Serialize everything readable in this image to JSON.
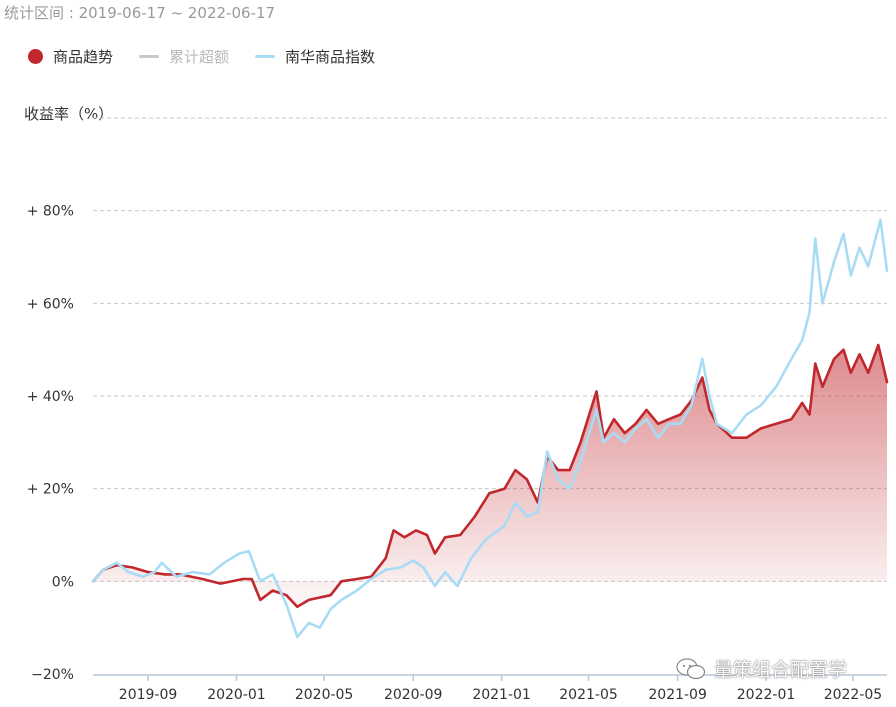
{
  "header": {
    "stat_range": "统计区间 : 2019-06-17 ~ 2022-06-17"
  },
  "legend": [
    {
      "label": "商品趋势",
      "color": "#c0282d",
      "shape": "dot"
    },
    {
      "label": "累计超额",
      "color": "#c8c8c8",
      "shape": "line",
      "muted": true
    },
    {
      "label": "南华商品指数",
      "color": "#a8dcf5",
      "shape": "line"
    }
  ],
  "watermark": {
    "text": "量策组合配置学",
    "icon": "wechat-icon"
  },
  "chart_data": {
    "type": "line",
    "ylabel": "收益率（%）",
    "ylim": [
      -20,
      100
    ],
    "yticks": [
      {
        "value": 80,
        "label": "+ 80%"
      },
      {
        "value": 60,
        "label": "+ 60%"
      },
      {
        "value": 40,
        "label": "+ 40%"
      },
      {
        "value": 20,
        "label": "+ 20%"
      },
      {
        "value": 0,
        "label": "0%"
      },
      {
        "value": -20,
        "label": "−20%"
      }
    ],
    "xlim": [
      "2019-06-17",
      "2022-06-17"
    ],
    "xticks": [
      "2019-09",
      "2020-01",
      "2020-05",
      "2020-09",
      "2021-01",
      "2021-05",
      "2021-09",
      "2022-01",
      "2022-05"
    ],
    "grid": true,
    "legend_position": "top-left",
    "series": [
      {
        "name": "商品趋势",
        "color": "#c0282d",
        "area": true,
        "points": [
          [
            "2019-06-17",
            0
          ],
          [
            "2019-07-01",
            2.5
          ],
          [
            "2019-07-20",
            3.5
          ],
          [
            "2019-08-10",
            3.0
          ],
          [
            "2019-09-01",
            2.0
          ],
          [
            "2019-09-25",
            1.5
          ],
          [
            "2019-10-15",
            1.5
          ],
          [
            "2019-11-15",
            0.5
          ],
          [
            "2019-12-10",
            -0.5
          ],
          [
            "2020-01-10",
            0.5
          ],
          [
            "2020-01-22",
            0.5
          ],
          [
            "2020-02-03",
            -4.0
          ],
          [
            "2020-02-20",
            -2.0
          ],
          [
            "2020-03-10",
            -3.0
          ],
          [
            "2020-03-25",
            -5.5
          ],
          [
            "2020-04-10",
            -4.0
          ],
          [
            "2020-04-25",
            -3.5
          ],
          [
            "2020-05-10",
            -3.0
          ],
          [
            "2020-05-25",
            0.0
          ],
          [
            "2020-06-15",
            0.5
          ],
          [
            "2020-07-05",
            1.0
          ],
          [
            "2020-07-25",
            5.0
          ],
          [
            "2020-08-05",
            11.0
          ],
          [
            "2020-08-20",
            9.5
          ],
          [
            "2020-09-05",
            11.0
          ],
          [
            "2020-09-20",
            10.0
          ],
          [
            "2020-10-01",
            6.0
          ],
          [
            "2020-10-15",
            9.5
          ],
          [
            "2020-11-05",
            10.0
          ],
          [
            "2020-11-25",
            14.0
          ],
          [
            "2020-12-15",
            19.0
          ],
          [
            "2021-01-05",
            20.0
          ],
          [
            "2021-01-20",
            24.0
          ],
          [
            "2021-02-05",
            22.0
          ],
          [
            "2021-02-20",
            17.0
          ],
          [
            "2021-03-05",
            27.0
          ],
          [
            "2021-03-20",
            24.0
          ],
          [
            "2021-04-05",
            24.0
          ],
          [
            "2021-04-20",
            30.0
          ],
          [
            "2021-05-12",
            41.0
          ],
          [
            "2021-05-22",
            31.0
          ],
          [
            "2021-06-05",
            35.0
          ],
          [
            "2021-06-20",
            32.0
          ],
          [
            "2021-07-05",
            34.0
          ],
          [
            "2021-07-20",
            37.0
          ],
          [
            "2021-08-05",
            34.0
          ],
          [
            "2021-08-20",
            35.0
          ],
          [
            "2021-09-05",
            36.0
          ],
          [
            "2021-09-20",
            39.0
          ],
          [
            "2021-10-05",
            44.0
          ],
          [
            "2021-10-15",
            37.0
          ],
          [
            "2021-10-25",
            34.0
          ],
          [
            "2021-11-15",
            31.0
          ],
          [
            "2021-12-05",
            31.0
          ],
          [
            "2021-12-25",
            33.0
          ],
          [
            "2022-01-15",
            34.0
          ],
          [
            "2022-02-05",
            35.0
          ],
          [
            "2022-02-20",
            38.5
          ],
          [
            "2022-03-02",
            36.0
          ],
          [
            "2022-03-10",
            47.0
          ],
          [
            "2022-03-20",
            42.0
          ],
          [
            "2022-04-05",
            48.0
          ],
          [
            "2022-04-18",
            50.0
          ],
          [
            "2022-04-28",
            45.0
          ],
          [
            "2022-05-10",
            49.0
          ],
          [
            "2022-05-22",
            45.0
          ],
          [
            "2022-06-05",
            51.0
          ],
          [
            "2022-06-17",
            43.0
          ]
        ]
      },
      {
        "name": "南华商品指数",
        "color": "#a8dcf5",
        "area": false,
        "points": [
          [
            "2019-06-17",
            0
          ],
          [
            "2019-07-01",
            2.5
          ],
          [
            "2019-07-20",
            4.0
          ],
          [
            "2019-08-05",
            2.0
          ],
          [
            "2019-08-25",
            1.0
          ],
          [
            "2019-09-10",
            2.0
          ],
          [
            "2019-09-20",
            4.0
          ],
          [
            "2019-10-10",
            1.0
          ],
          [
            "2019-11-01",
            2.0
          ],
          [
            "2019-11-25",
            1.5
          ],
          [
            "2019-12-15",
            4.0
          ],
          [
            "2020-01-05",
            6.0
          ],
          [
            "2020-01-18",
            6.5
          ],
          [
            "2020-02-03",
            0.0
          ],
          [
            "2020-02-20",
            1.5
          ],
          [
            "2020-03-10",
            -5.0
          ],
          [
            "2020-03-25",
            -12.0
          ],
          [
            "2020-04-10",
            -9.0
          ],
          [
            "2020-04-25",
            -10.0
          ],
          [
            "2020-05-10",
            -6.0
          ],
          [
            "2020-05-25",
            -4.0
          ],
          [
            "2020-06-15",
            -2.0
          ],
          [
            "2020-07-05",
            0.5
          ],
          [
            "2020-07-25",
            2.5
          ],
          [
            "2020-08-15",
            3.0
          ],
          [
            "2020-09-01",
            4.5
          ],
          [
            "2020-09-15",
            3.0
          ],
          [
            "2020-10-01",
            -1.0
          ],
          [
            "2020-10-15",
            2.0
          ],
          [
            "2020-11-01",
            -1.0
          ],
          [
            "2020-11-20",
            5.0
          ],
          [
            "2020-12-10",
            9.0
          ],
          [
            "2021-01-05",
            12.0
          ],
          [
            "2021-01-20",
            17.0
          ],
          [
            "2021-02-05",
            14.0
          ],
          [
            "2021-02-20",
            15.0
          ],
          [
            "2021-03-05",
            28.0
          ],
          [
            "2021-03-20",
            22.0
          ],
          [
            "2021-04-05",
            20.0
          ],
          [
            "2021-04-20",
            26.0
          ],
          [
            "2021-05-12",
            37.0
          ],
          [
            "2021-05-22",
            30.0
          ],
          [
            "2021-06-05",
            32.0
          ],
          [
            "2021-06-20",
            30.0
          ],
          [
            "2021-07-05",
            33.0
          ],
          [
            "2021-07-20",
            35.0
          ],
          [
            "2021-08-05",
            31.0
          ],
          [
            "2021-08-20",
            34.0
          ],
          [
            "2021-09-05",
            34.0
          ],
          [
            "2021-09-20",
            38.0
          ],
          [
            "2021-10-05",
            48.0
          ],
          [
            "2021-10-15",
            40.0
          ],
          [
            "2021-10-25",
            34.0
          ],
          [
            "2021-11-15",
            32.0
          ],
          [
            "2021-12-05",
            36.0
          ],
          [
            "2021-12-25",
            38.0
          ],
          [
            "2022-01-15",
            42.0
          ],
          [
            "2022-02-05",
            48.0
          ],
          [
            "2022-02-20",
            52.0
          ],
          [
            "2022-03-02",
            58.0
          ],
          [
            "2022-03-10",
            74.0
          ],
          [
            "2022-03-20",
            60.0
          ],
          [
            "2022-04-05",
            69.0
          ],
          [
            "2022-04-18",
            75.0
          ],
          [
            "2022-04-28",
            66.0
          ],
          [
            "2022-05-10",
            72.0
          ],
          [
            "2022-05-22",
            68.0
          ],
          [
            "2022-06-08",
            78.0
          ],
          [
            "2022-06-17",
            67.0
          ]
        ]
      }
    ]
  }
}
